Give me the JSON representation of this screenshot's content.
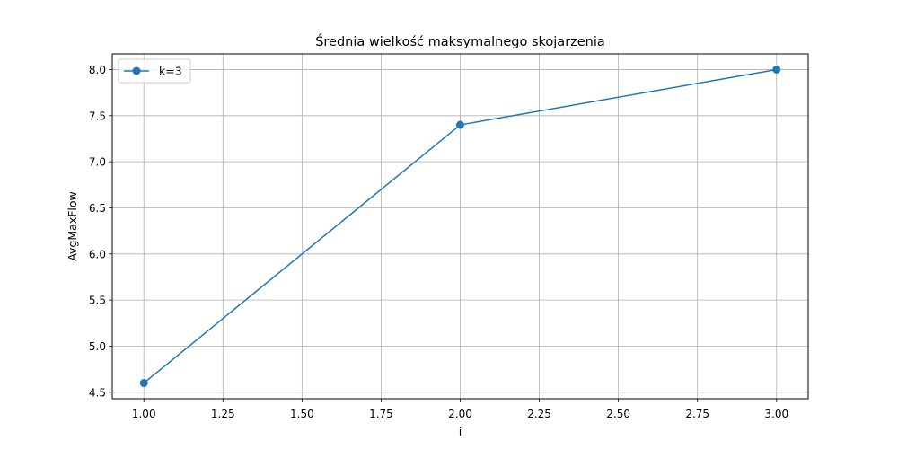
{
  "chart_data": {
    "type": "line",
    "title": "Średnia wielkość maksymalnego skojarzenia",
    "xlabel": "i",
    "ylabel": "AvgMaxFlow",
    "xlim": [
      0.9,
      3.1
    ],
    "ylim": [
      4.43,
      8.17
    ],
    "xticks": [
      1.0,
      1.25,
      1.5,
      1.75,
      2.0,
      2.25,
      2.5,
      2.75,
      3.0
    ],
    "xtick_labels": [
      "1.00",
      "1.25",
      "1.50",
      "1.75",
      "2.00",
      "2.25",
      "2.50",
      "2.75",
      "3.00"
    ],
    "yticks": [
      4.5,
      5.0,
      5.5,
      6.0,
      6.5,
      7.0,
      7.5,
      8.0
    ],
    "ytick_labels": [
      "4.5",
      "5.0",
      "5.5",
      "6.0",
      "6.5",
      "7.0",
      "7.5",
      "8.0"
    ],
    "grid": true,
    "legend_position": "top-left",
    "series": [
      {
        "name": "k=3",
        "color": "#1f77b4",
        "marker": "circle",
        "x": [
          1,
          2,
          3
        ],
        "y": [
          4.6,
          7.4,
          8.0
        ]
      }
    ]
  }
}
